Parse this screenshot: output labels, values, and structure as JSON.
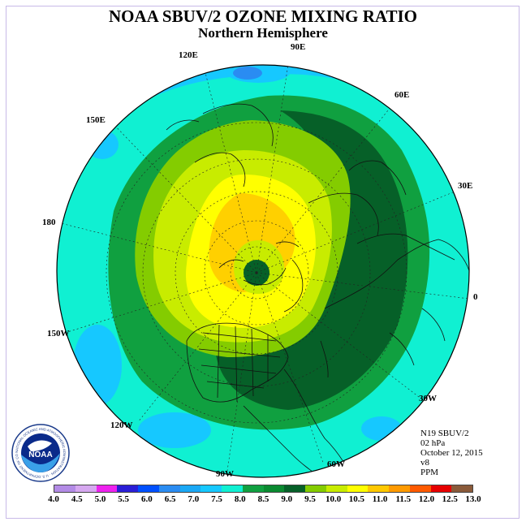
{
  "title": "NOAA SBUV/2 OZONE MIXING RATIO",
  "subtitle": "Northern Hemisphere",
  "longitude_labels": {
    "lon_90e": "90E",
    "lon_60e": "60E",
    "lon_30e": "30E",
    "lon_0": "0",
    "lon_30w": "30W",
    "lon_60w": "60W",
    "lon_90w": "90W",
    "lon_120w": "120W",
    "lon_150w": "150W",
    "lon_180": "180",
    "lon_150e": "150E",
    "lon_120e": "120E"
  },
  "info": {
    "instrument": "N19 SBUV/2",
    "level": "02 hPa",
    "date": "October 12, 2015",
    "version": "v8",
    "units": "PPM"
  },
  "colorbar": {
    "ticks": [
      "4.0",
      "4.5",
      "5.0",
      "5.5",
      "6.0",
      "6.5",
      "7.0",
      "7.5",
      "8.0",
      "8.5",
      "9.0",
      "9.5",
      "10.0",
      "10.5",
      "11.0",
      "11.5",
      "12.0",
      "12.5",
      "13.0"
    ],
    "colors": [
      "#b38be6",
      "#d6a8f0",
      "#ee22ee",
      "#2a1ed6",
      "#0050ff",
      "#2a8cf2",
      "#1aa8f5",
      "#16c8ff",
      "#10f0d2",
      "#10a040",
      "#0a8a30",
      "#066028",
      "#84cc00",
      "#c8ec00",
      "#ffff00",
      "#ffc800",
      "#ff9a00",
      "#ff5a00",
      "#e60000",
      "#8a5a3a"
    ]
  },
  "logo": {
    "text": "NOAA",
    "ring_text": "NATIONAL OCEANIC AND ATMOSPHERIC ADMINISTRATION · U.S. DEPARTMENT OF COMMERCE"
  },
  "colors": {
    "disk_background": "#16c8ff",
    "band_7_5": "#10f0d2",
    "band_8_0": "#10a040",
    "band_8_5": "#066028",
    "band_9_0": "#84cc00",
    "band_9_5": "#c8ec00",
    "band_10_0": "#ffff00",
    "band_10_5": "#ffd000"
  }
}
